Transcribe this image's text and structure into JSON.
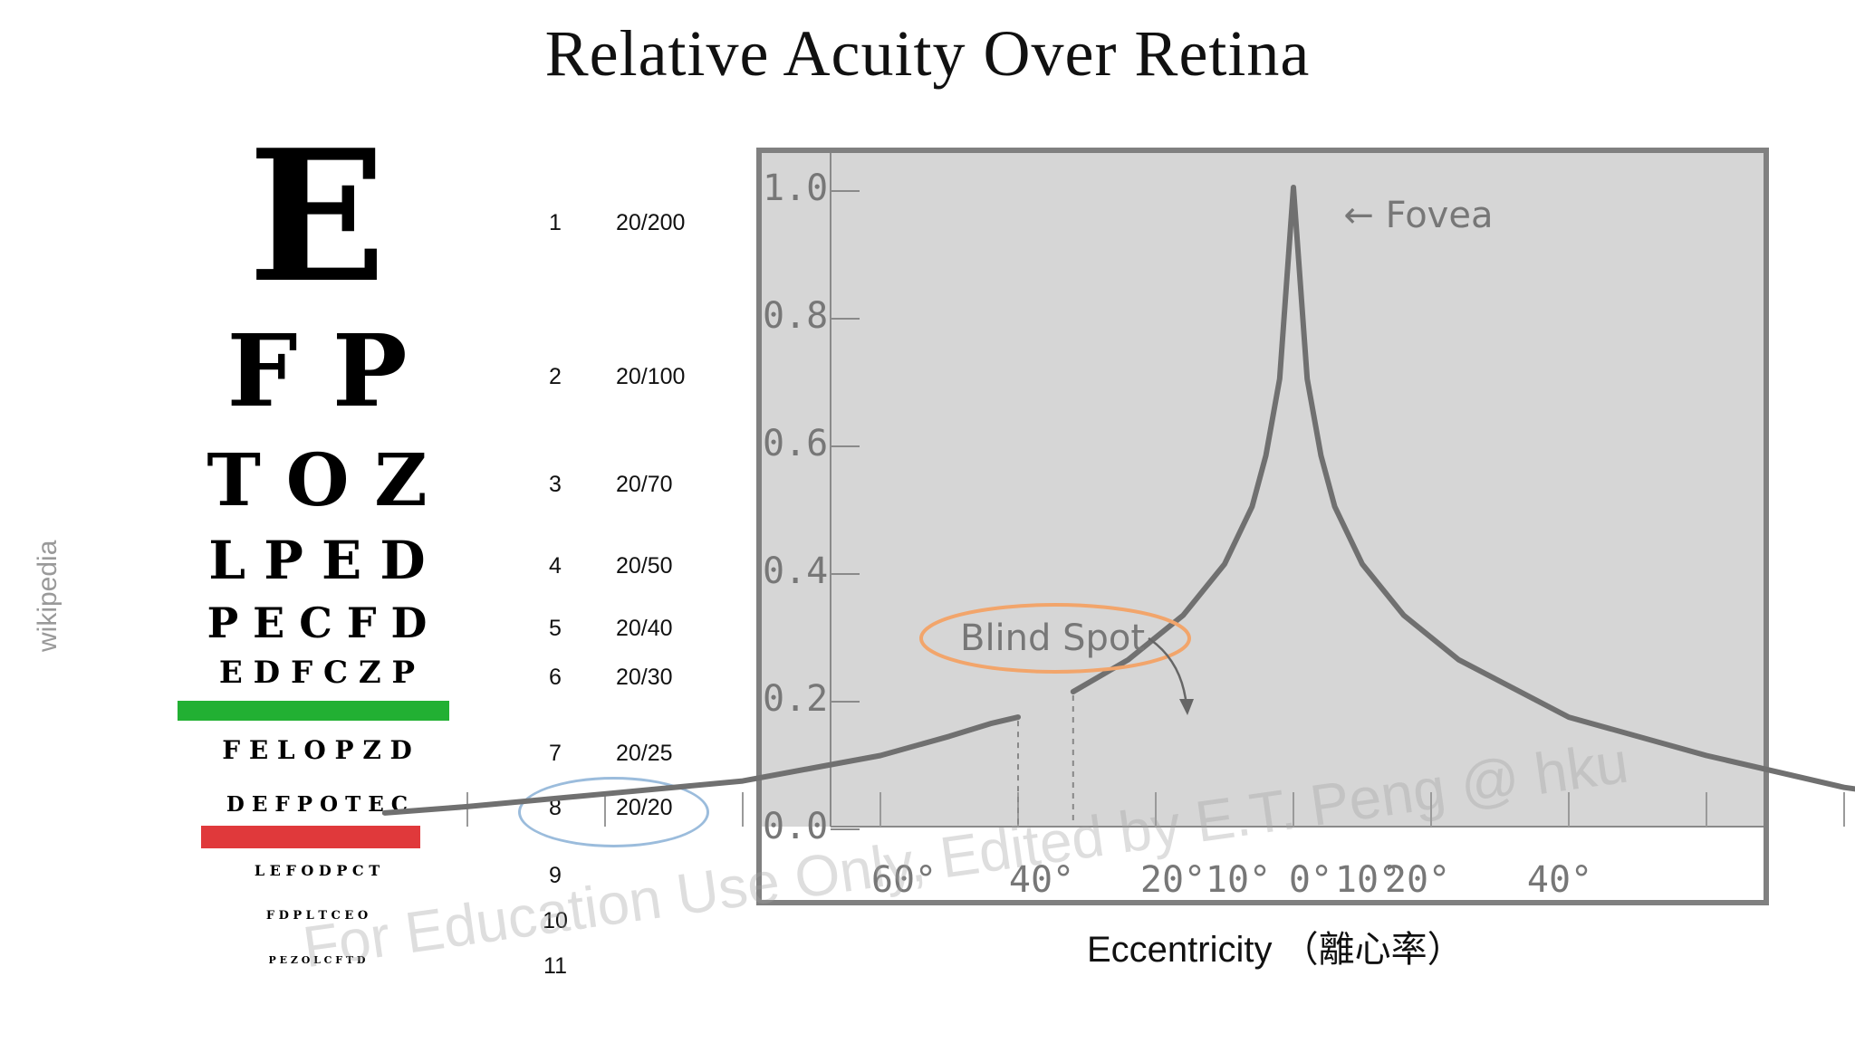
{
  "title": "Relative Acuity Over Retina",
  "side_credit": "wikipedia",
  "watermark": "For Education Use Only, Edited by E.T. Peng @ hku",
  "eye_chart": {
    "rows": [
      {
        "letters": "E",
        "line": "1",
        "snellen": "20/200"
      },
      {
        "letters": "F P",
        "line": "2",
        "snellen": "20/100"
      },
      {
        "letters": "T O Z",
        "line": "3",
        "snellen": "20/70"
      },
      {
        "letters": "L P E D",
        "line": "4",
        "snellen": "20/50"
      },
      {
        "letters": "P E C F D",
        "line": "5",
        "snellen": "20/40"
      },
      {
        "letters": "E D F C Z P",
        "line": "6",
        "snellen": "20/30"
      },
      {
        "letters": "F E L O P Z D",
        "line": "7",
        "snellen": "20/25"
      },
      {
        "letters": "D E F P O T E C",
        "line": "8",
        "snellen": "20/20"
      },
      {
        "letters": "L E F O D P C T",
        "line": "9",
        "snellen": ""
      },
      {
        "letters": "F D P L T C E O",
        "line": "10",
        "snellen": ""
      },
      {
        "letters": "P E Z O L C F T D",
        "line": "11",
        "snellen": ""
      }
    ],
    "highlighted_line": "8",
    "colors": {
      "green_bar": "#22b033",
      "red_bar": "#e0393b",
      "highlight_circle": "#9bbcdc"
    }
  },
  "chart_data": {
    "type": "line",
    "title": "",
    "xlabel": "Eccentricity （離心率）",
    "ylabel": "",
    "y_ticks": [
      "0.0",
      "0.2",
      "0.4",
      "0.6",
      "0.8",
      "1.0"
    ],
    "x_tick_labels": [
      "60°",
      "40°",
      "20°",
      "10°",
      "0°",
      "10°",
      "20°",
      "40°"
    ],
    "x_tick_positions_deg": [
      -60,
      -40,
      -20,
      -10,
      0,
      10,
      20,
      40
    ],
    "ylim": [
      0,
      1.0
    ],
    "xlim": [
      -70,
      70
    ],
    "series": [
      {
        "x": [
          -66,
          -60,
          -50,
          -40,
          -35,
          -30,
          -25,
          -22,
          -20
        ],
        "y": [
          0.02,
          0.03,
          0.05,
          0.07,
          0.09,
          0.11,
          0.14,
          0.16,
          0.17
        ]
      },
      {
        "x": [
          -16,
          -12,
          -8,
          -5,
          -3,
          -2,
          -1,
          0,
          1,
          2,
          3,
          5,
          8,
          12,
          20,
          30,
          40,
          50,
          55
        ],
        "y": [
          0.21,
          0.26,
          0.33,
          0.41,
          0.5,
          0.58,
          0.7,
          1.0,
          0.7,
          0.58,
          0.5,
          0.41,
          0.33,
          0.26,
          0.17,
          0.11,
          0.06,
          0.03,
          0.01
        ]
      }
    ],
    "blind_spot_range_deg": [
      -20,
      -16
    ],
    "annotations": [
      {
        "text": "← Fovea",
        "x": 2,
        "y": 0.98
      },
      {
        "text": "Blind Spot",
        "x": -30,
        "y": 0.27
      }
    ],
    "grid": false,
    "colors": {
      "plot_bg": "#d6d6d6",
      "line": "#707070",
      "frame": "#808080",
      "blind_spot_circle": "#f2a56b"
    }
  }
}
